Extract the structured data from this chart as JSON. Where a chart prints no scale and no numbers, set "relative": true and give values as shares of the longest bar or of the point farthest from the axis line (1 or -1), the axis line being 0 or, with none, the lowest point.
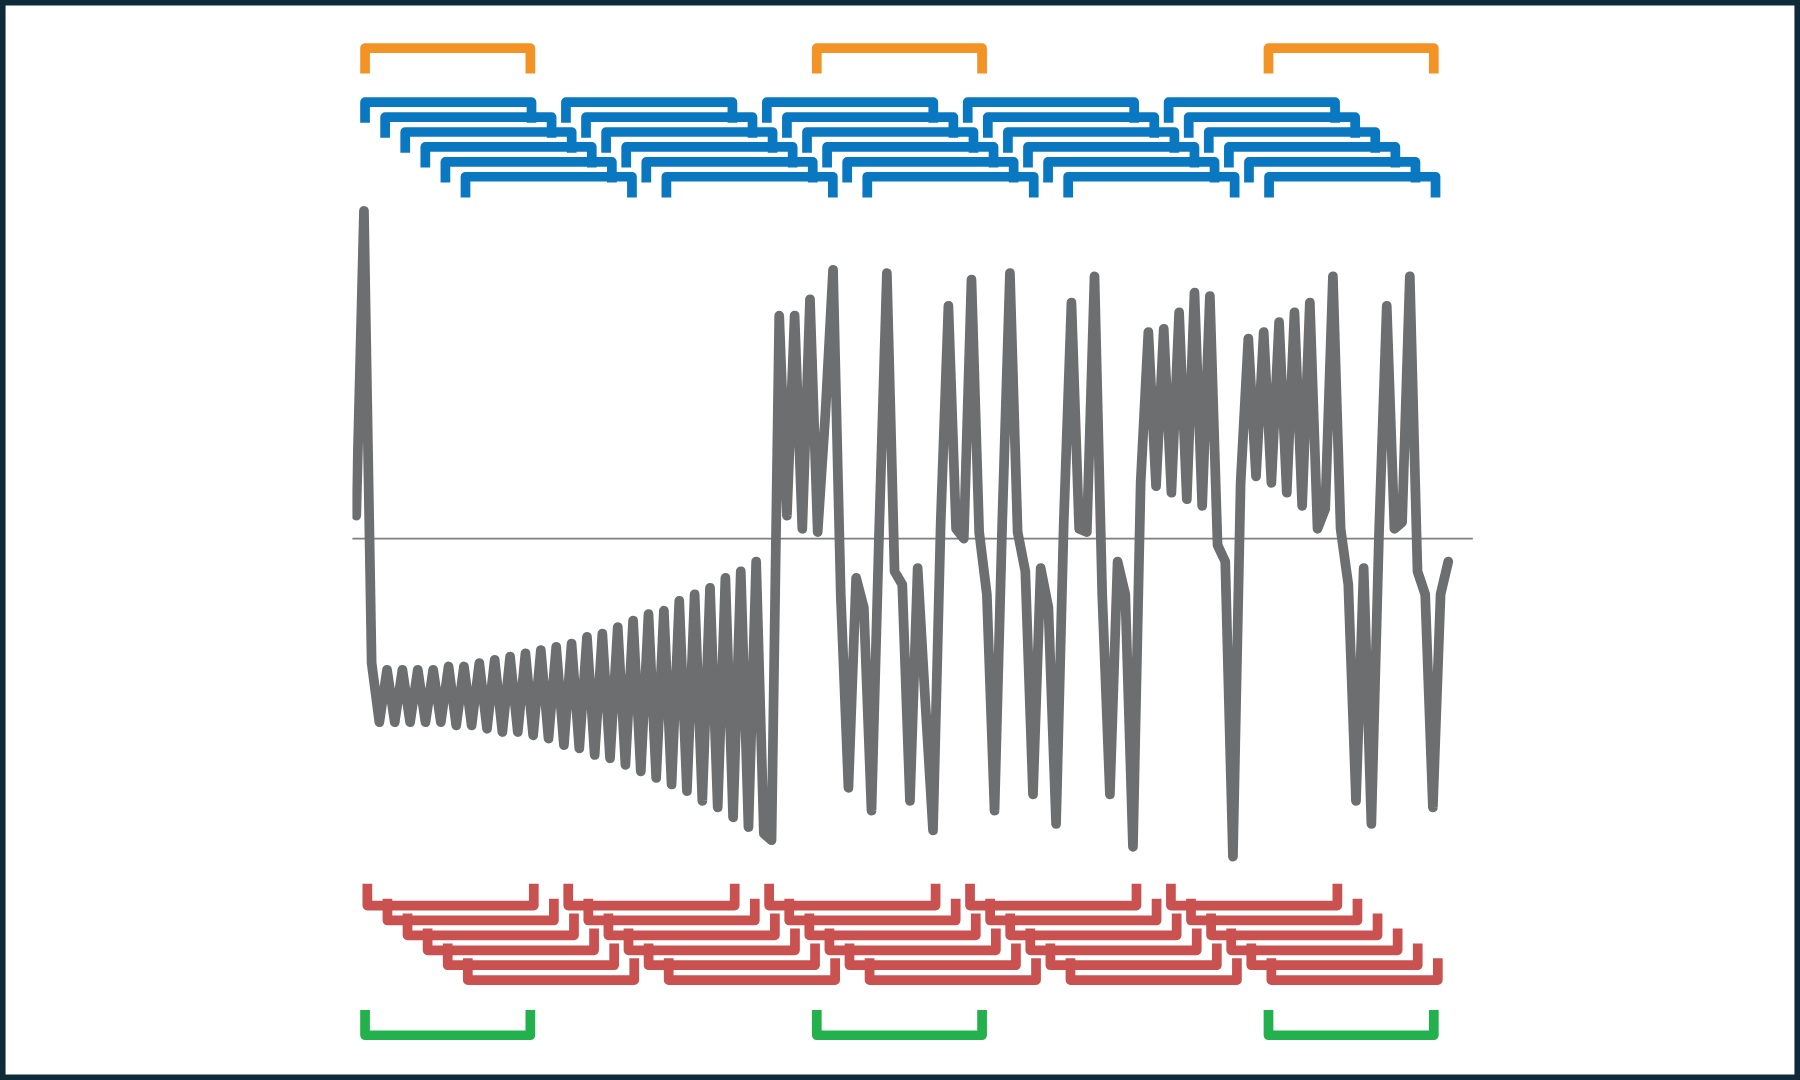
{
  "chart_data": {
    "type": "line",
    "relative": true,
    "categories": [
      null,
      null,
      null,
      null,
      null,
      null,
      null,
      null,
      null,
      null,
      null,
      null,
      null,
      null,
      null,
      null,
      null,
      null,
      null,
      null,
      null,
      null,
      null,
      null,
      null,
      null,
      null,
      null,
      null,
      null,
      null,
      null,
      null,
      null,
      null,
      null,
      null,
      null,
      null,
      null,
      null,
      null,
      null,
      null,
      null,
      null,
      null,
      null,
      null,
      null,
      null,
      null,
      null,
      null,
      null,
      null,
      null,
      null,
      null,
      null,
      null,
      null,
      null,
      null,
      null,
      null,
      null,
      null,
      null,
      null,
      null,
      null,
      null,
      null,
      null,
      null,
      null,
      null,
      null,
      null,
      null,
      null,
      null,
      null,
      null,
      null,
      null,
      null,
      null,
      null,
      null,
      null,
      null,
      null,
      null,
      null,
      null,
      null,
      null,
      null,
      null,
      null,
      null,
      null,
      null,
      null,
      null,
      null,
      null,
      null,
      null,
      null,
      null,
      null,
      null,
      null,
      null,
      null,
      null,
      null,
      null,
      null,
      null,
      null,
      null,
      null,
      null,
      null,
      null,
      null,
      null,
      null,
      null,
      null,
      null,
      null,
      null,
      null,
      null,
      null,
      null,
      null,
      null
    ],
    "series": [
      {
        "color": "#6d6e70",
        "values": [
          0.07,
          1.0,
          -0.38,
          -0.56,
          -0.4,
          -0.56,
          -0.4,
          -0.56,
          -0.4,
          -0.56,
          -0.4,
          -0.56,
          -0.39,
          -0.57,
          -0.39,
          -0.57,
          -0.38,
          -0.58,
          -0.37,
          -0.59,
          -0.36,
          -0.59,
          -0.35,
          -0.6,
          -0.34,
          -0.61,
          -0.33,
          -0.63,
          -0.32,
          -0.64,
          -0.3,
          -0.66,
          -0.29,
          -0.67,
          -0.27,
          -0.69,
          -0.25,
          -0.71,
          -0.23,
          -0.73,
          -0.22,
          -0.75,
          -0.19,
          -0.77,
          -0.17,
          -0.8,
          -0.15,
          -0.82,
          -0.12,
          -0.85,
          -0.1,
          -0.88,
          -0.07,
          -0.9,
          -0.92,
          0.68,
          0.07,
          0.68,
          0.03,
          0.73,
          0.02,
          0.38,
          0.82,
          -0.17,
          -0.76,
          -0.12,
          -0.21,
          -0.83,
          0.03,
          0.81,
          -0.1,
          -0.14,
          -0.8,
          -0.09,
          -0.5,
          -0.89,
          0.05,
          0.71,
          0.03,
          0.0,
          0.79,
          0.02,
          -0.17,
          -0.83,
          0.05,
          0.81,
          0.02,
          -0.1,
          -0.78,
          -0.09,
          -0.21,
          -0.87,
          0.05,
          0.72,
          0.03,
          0.02,
          0.8,
          -0.17,
          -0.78,
          -0.07,
          -0.17,
          -0.94,
          0.17,
          0.63,
          0.16,
          0.64,
          0.14,
          0.69,
          0.12,
          0.75,
          0.1,
          0.74,
          -0.02,
          -0.07,
          -0.97,
          0.17,
          0.61,
          0.19,
          0.63,
          0.17,
          0.66,
          0.14,
          0.69,
          0.1,
          0.72,
          0.03,
          0.09,
          0.8,
          0.03,
          -0.14,
          -0.8,
          -0.09,
          -0.87,
          0.02,
          0.71,
          0.03,
          0.05,
          0.8,
          -0.1,
          -0.17,
          -0.82,
          -0.17,
          -0.07
        ]
      }
    ]
  }
}
